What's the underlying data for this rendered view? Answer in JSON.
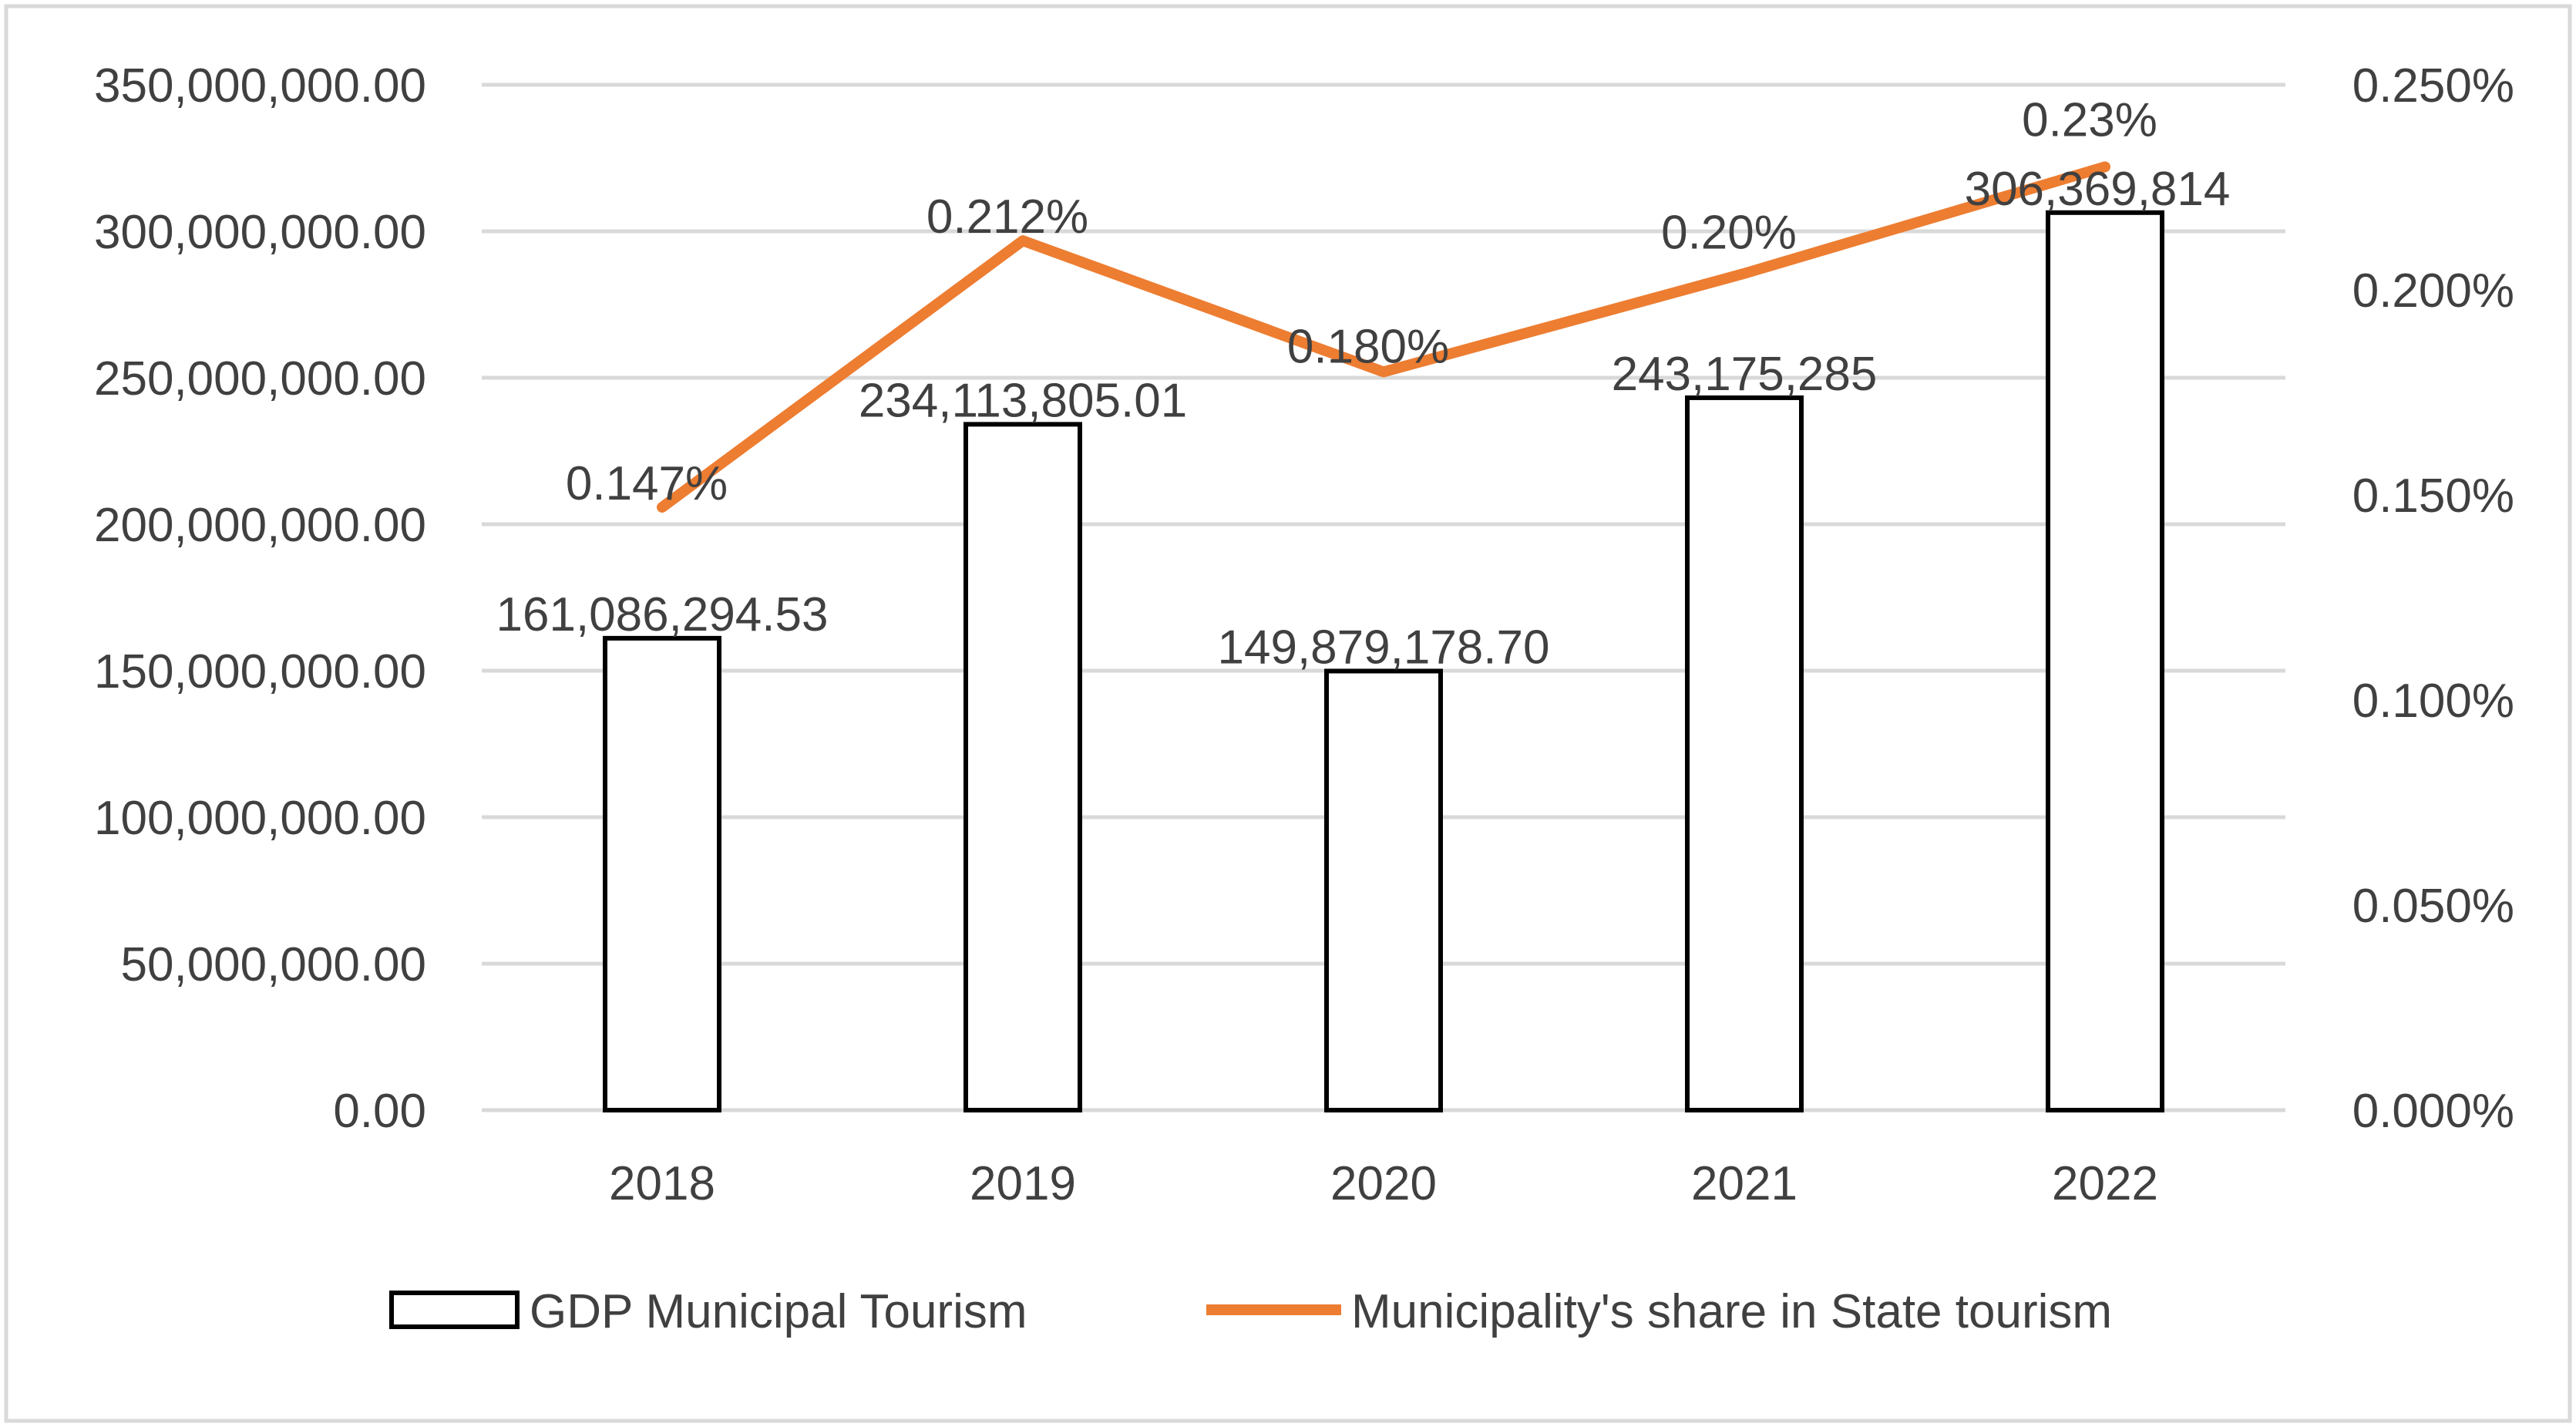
{
  "chart_data": {
    "type": "bar+line",
    "title": "",
    "categories": [
      "2018",
      "2019",
      "2020",
      "2021",
      "2022"
    ],
    "series": [
      {
        "name": "GDP Municipal Tourism",
        "type": "bar",
        "axis": "left",
        "values": [
          161086294.53,
          234113805.01,
          149879178.7,
          243175285,
          306369814
        ],
        "labels": [
          "161,086,294.53",
          "234,113,805.01",
          "149,879,178.70",
          "243,175,285",
          "306,369,814"
        ]
      },
      {
        "name": "Municipality's share in State tourism",
        "type": "line",
        "axis": "right",
        "values": [
          0.147,
          0.212,
          0.18,
          0.204,
          0.23
        ],
        "labels": [
          "0.147%",
          "0.212%",
          "0.180%",
          "0.20%",
          "0.23%"
        ]
      }
    ],
    "left_axis": {
      "ylim": [
        0,
        350000000
      ],
      "ticks": [
        0,
        50000000,
        100000000,
        150000000,
        200000000,
        250000000,
        300000000,
        350000000
      ],
      "tick_labels": [
        "0.00",
        "50,000,000.00",
        "100,000,000.00",
        "150,000,000.00",
        "200,000,000.00",
        "250,000,000.00",
        "300,000,000.00",
        "350,000,000.00"
      ]
    },
    "right_axis": {
      "ylim": [
        0,
        0.25
      ],
      "ticks": [
        0,
        0.05,
        0.1,
        0.15,
        0.2,
        0.25
      ],
      "tick_labels": [
        "0.000%",
        "0.050%",
        "0.100%",
        "0.150%",
        "0.200%",
        "0.250%"
      ]
    },
    "grid": true,
    "legend_position": "bottom",
    "colors": {
      "bar_fill": "#ffffff",
      "bar_stroke": "#000000",
      "line": "#ED7D31",
      "grid": "#D9D9D9",
      "text": "#404040",
      "frame": "#D9D9D9"
    }
  }
}
